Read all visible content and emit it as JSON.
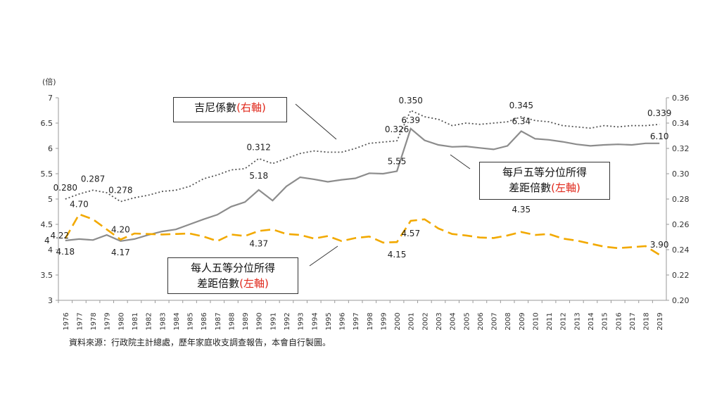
{
  "chart_data": {
    "type": "line",
    "x": [
      "1976",
      "1977",
      "1978",
      "1979",
      "1980",
      "1981",
      "1982",
      "1983",
      "1984",
      "1985",
      "1986",
      "1987",
      "1988",
      "1989",
      "1990",
      "1991",
      "1992",
      "1993",
      "1994",
      "1995",
      "1996",
      "1997",
      "1998",
      "1999",
      "2000",
      "2001",
      "2002",
      "2003",
      "2004",
      "2005",
      "2006",
      "2007",
      "2008",
      "2009",
      "2010",
      "2011",
      "2012",
      "2013",
      "2014",
      "2015",
      "2016",
      "2017",
      "2018",
      "2019"
    ],
    "left_axis": {
      "unit_label": "(倍)",
      "ylim": [
        3,
        7
      ],
      "ticks": [
        "3",
        "3.5",
        "4",
        "4.5",
        "5",
        "5.5",
        "6",
        "6.5",
        "7"
      ]
    },
    "right_axis": {
      "ylim": [
        0.2,
        0.36
      ],
      "ticks": [
        "0.20",
        "0.22",
        "0.24",
        "0.26",
        "0.28",
        "0.30",
        "0.32",
        "0.34",
        "0.36"
      ]
    },
    "series": [
      {
        "name": "吉尼係數",
        "axis": "right",
        "style": "dotted",
        "color": "#555555",
        "values": [
          0.28,
          0.284,
          0.287,
          0.285,
          0.278,
          0.281,
          0.283,
          0.286,
          0.287,
          0.29,
          0.296,
          0.299,
          0.303,
          0.304,
          0.312,
          0.308,
          0.312,
          0.316,
          0.318,
          0.317,
          0.317,
          0.32,
          0.324,
          0.325,
          0.326,
          0.35,
          0.345,
          0.343,
          0.338,
          0.34,
          0.339,
          0.34,
          0.341,
          0.345,
          0.342,
          0.341,
          0.338,
          0.337,
          0.336,
          0.338,
          0.337,
          0.338,
          0.338,
          0.339
        ]
      },
      {
        "name": "每戶五等分位所得差距倍數",
        "axis": "left",
        "style": "solid",
        "color": "#8c8c8c",
        "values": [
          4.18,
          4.21,
          4.19,
          4.29,
          4.17,
          4.21,
          4.29,
          4.36,
          4.4,
          4.5,
          4.6,
          4.69,
          4.85,
          4.94,
          5.18,
          4.97,
          5.25,
          5.43,
          5.39,
          5.34,
          5.38,
          5.41,
          5.51,
          5.5,
          5.55,
          6.39,
          6.16,
          6.07,
          6.03,
          6.04,
          6.01,
          5.98,
          6.05,
          6.34,
          6.19,
          6.17,
          6.13,
          6.08,
          6.05,
          6.07,
          6.08,
          6.07,
          6.1,
          6.1
        ]
      },
      {
        "name": "每人五等分位所得差距倍數",
        "axis": "left",
        "style": "dashed",
        "color": "#f2a900",
        "values": [
          4.22,
          4.7,
          4.6,
          4.4,
          4.2,
          4.32,
          4.31,
          4.3,
          4.31,
          4.32,
          4.26,
          4.17,
          4.3,
          4.27,
          4.37,
          4.4,
          4.31,
          4.29,
          4.22,
          4.27,
          4.17,
          4.23,
          4.26,
          4.14,
          4.15,
          4.57,
          4.6,
          4.42,
          4.31,
          4.28,
          4.24,
          4.23,
          4.28,
          4.35,
          4.29,
          4.31,
          4.22,
          4.18,
          4.12,
          4.06,
          4.03,
          4.05,
          4.07,
          3.9
        ]
      }
    ],
    "data_labels": [
      {
        "series": 0,
        "index": 0,
        "text": "0.280"
      },
      {
        "series": 0,
        "index": 2,
        "text": "0.287"
      },
      {
        "series": 0,
        "index": 4,
        "text": "0.278"
      },
      {
        "series": 0,
        "index": 14,
        "text": "0.312"
      },
      {
        "series": 0,
        "index": 24,
        "text": "0.326"
      },
      {
        "series": 0,
        "index": 25,
        "text": "0.350"
      },
      {
        "series": 0,
        "index": 33,
        "text": "0.345"
      },
      {
        "series": 0,
        "index": 43,
        "text": "0.339"
      },
      {
        "series": 1,
        "index": 0,
        "text": "4.18"
      },
      {
        "series": 1,
        "index": 4,
        "text": "4.17"
      },
      {
        "series": 1,
        "index": 14,
        "text": "5.18"
      },
      {
        "series": 1,
        "index": 24,
        "text": "5.55"
      },
      {
        "series": 1,
        "index": 25,
        "text": "6.39"
      },
      {
        "series": 1,
        "index": 33,
        "text": "6.34"
      },
      {
        "series": 1,
        "index": 43,
        "text": "6.10"
      },
      {
        "series": 2,
        "index": 0,
        "text": "4.22"
      },
      {
        "series": 2,
        "index": 1,
        "text": "4.70"
      },
      {
        "series": 2,
        "index": 4,
        "text": "4.20"
      },
      {
        "series": 2,
        "index": 14,
        "text": "4.37"
      },
      {
        "series": 2,
        "index": 24,
        "text": "4.15"
      },
      {
        "series": 2,
        "index": 25,
        "text": "4.57"
      },
      {
        "series": 2,
        "index": 33,
        "text": "4.35"
      },
      {
        "series": 2,
        "index": 43,
        "text": "3.90"
      }
    ],
    "extra_tick": "4",
    "grid": false
  },
  "callouts": {
    "gini": {
      "text": "吉尼係數",
      "paren": "(右軸)"
    },
    "household_line1": "每戶五等分位所得",
    "household_line2": "差距倍數",
    "household_paren": "(左軸)",
    "person_line1": "每人五等分位所得",
    "person_line2": "差距倍數",
    "person_paren": "(左軸)"
  },
  "source": "資料來源：行政院主計總處，歷年家庭收支調查報告，本會自行製圖。",
  "colors": {
    "accent_red": "#e0281b"
  }
}
